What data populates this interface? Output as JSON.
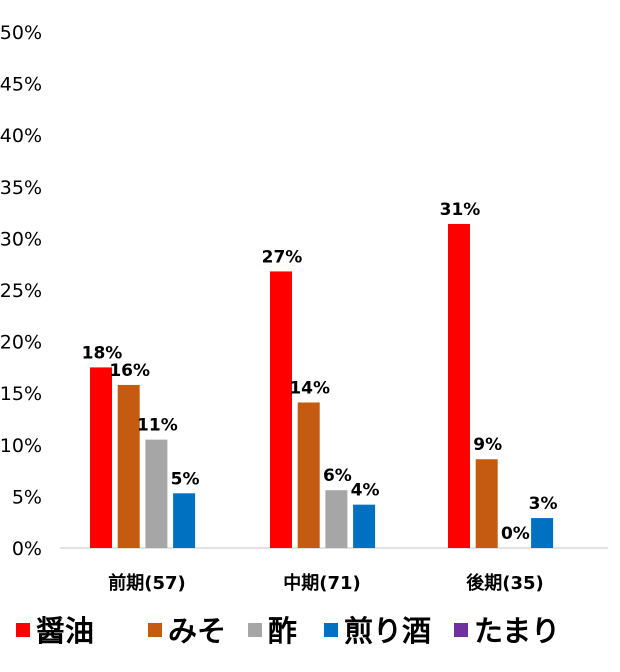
{
  "chart_data": {
    "type": "bar",
    "categories": [
      "前期(57)",
      "中期(71)",
      "後期(35)"
    ],
    "series": [
      {
        "name": "醤油",
        "color": "#ff0000",
        "values": [
          17.5,
          26.8,
          31.4
        ],
        "labels": [
          "18%",
          "27%",
          "31%"
        ]
      },
      {
        "name": "みそ",
        "color": "#c55a11",
        "values": [
          15.8,
          14.1,
          8.6
        ],
        "labels": [
          "16%",
          "14%",
          "9%"
        ]
      },
      {
        "name": "酢",
        "color": "#a6a6a6",
        "values": [
          10.5,
          5.6,
          0
        ],
        "labels": [
          "11%",
          "6%",
          "0%"
        ]
      },
      {
        "name": "煎り酒",
        "color": "#0070c0",
        "values": [
          5.3,
          4.2,
          2.9
        ],
        "labels": [
          "5%",
          "4%",
          "3%"
        ]
      },
      {
        "name": "たまり",
        "color": "#7030a0",
        "values": [
          0,
          0,
          0
        ],
        "labels": [
          "",
          "",
          ""
        ]
      }
    ],
    "y_ticks": [
      "0%",
      "5%",
      "10%",
      "15%",
      "20%",
      "25%",
      "30%",
      "35%",
      "40%",
      "45%",
      "50%"
    ],
    "ylim": [
      0,
      50
    ],
    "grid": false,
    "legend_position": "bottom"
  }
}
